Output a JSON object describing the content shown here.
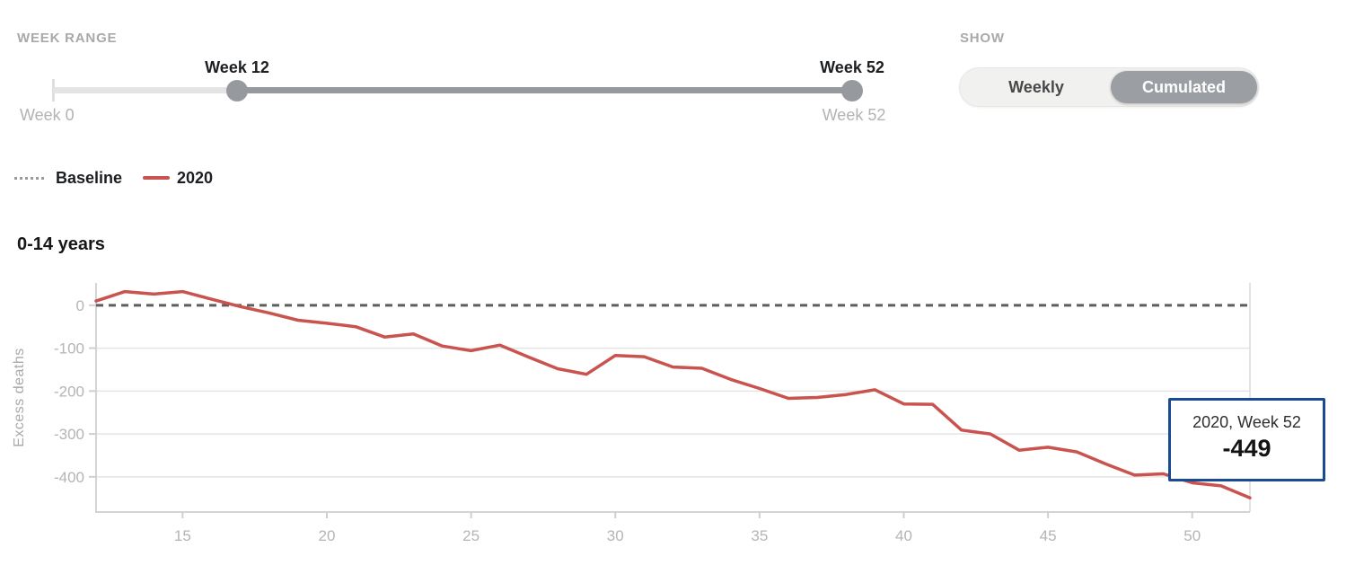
{
  "week_range": {
    "label": "WEEK RANGE",
    "min_label": "Week 0",
    "max_label": "Week 52",
    "handle_start_label": "Week 12",
    "handle_end_label": "Week 52",
    "min_week": 0,
    "max_week": 52,
    "selected_start_week": 12,
    "selected_end_week": 52
  },
  "show_toggle": {
    "label": "SHOW",
    "options": [
      {
        "label": "Weekly",
        "selected": false
      },
      {
        "label": "Cumulated",
        "selected": true
      }
    ]
  },
  "legend": {
    "items": [
      {
        "label": "Baseline",
        "style": "dotted",
        "color": "#9a9a9a"
      },
      {
        "label": "2020",
        "style": "solid",
        "color": "#c9534e"
      }
    ]
  },
  "tooltip": {
    "line1": "2020, Week 52",
    "value": "-449",
    "border_color": "#1b4a94"
  },
  "colors": {
    "accent_red": "#c9534e",
    "baseline_dash": "#5e5e5e",
    "gridline": "#e4e4e4",
    "axis_border": "#d4d4d4",
    "tick_text": "#b4b4b4",
    "muted_label": "#a9a9a9",
    "slider_track": "#e4e4e5",
    "slider_active": "#96999e",
    "toggle_selected_bg": "#9b9ea3",
    "tooltip_border": "#1b4a94"
  },
  "chart_data": {
    "type": "line",
    "title": "0-14 years",
    "xlabel": "",
    "ylabel": "Excess deaths",
    "xlim": [
      12,
      52
    ],
    "ylim": [
      -482,
      52
    ],
    "xticks": [
      15,
      20,
      25,
      30,
      35,
      40,
      45,
      50
    ],
    "yticks": [
      0,
      -100,
      -200,
      -300,
      -400
    ],
    "grid": "horizontal",
    "legend_position": "top-left",
    "x": [
      12,
      13,
      14,
      15,
      16,
      17,
      18,
      19,
      20,
      21,
      22,
      23,
      24,
      25,
      26,
      27,
      28,
      29,
      30,
      31,
      32,
      33,
      34,
      35,
      36,
      37,
      38,
      39,
      40,
      41,
      42,
      43,
      44,
      45,
      46,
      47,
      48,
      49,
      50,
      51,
      52
    ],
    "series": [
      {
        "name": "Baseline",
        "style": "dashed",
        "color": "#5e5e5e",
        "constant": 0
      },
      {
        "name": "2020",
        "style": "solid",
        "color": "#c9534e",
        "values": [
          10,
          32,
          26,
          32,
          14,
          -3,
          -18,
          -35,
          -42,
          -50,
          -74,
          -67,
          -95,
          -106,
          -93,
          -121,
          -148,
          -161,
          -117,
          -120,
          -144,
          -147,
          -173,
          -194,
          -217,
          -215,
          -208,
          -197,
          -230,
          -231,
          -291,
          -300,
          -338,
          -331,
          -342,
          -370,
          -396,
          -393,
          -414,
          -421,
          -449
        ]
      }
    ],
    "annotation": {
      "series": "2020",
      "week": 52,
      "value": -449
    }
  }
}
